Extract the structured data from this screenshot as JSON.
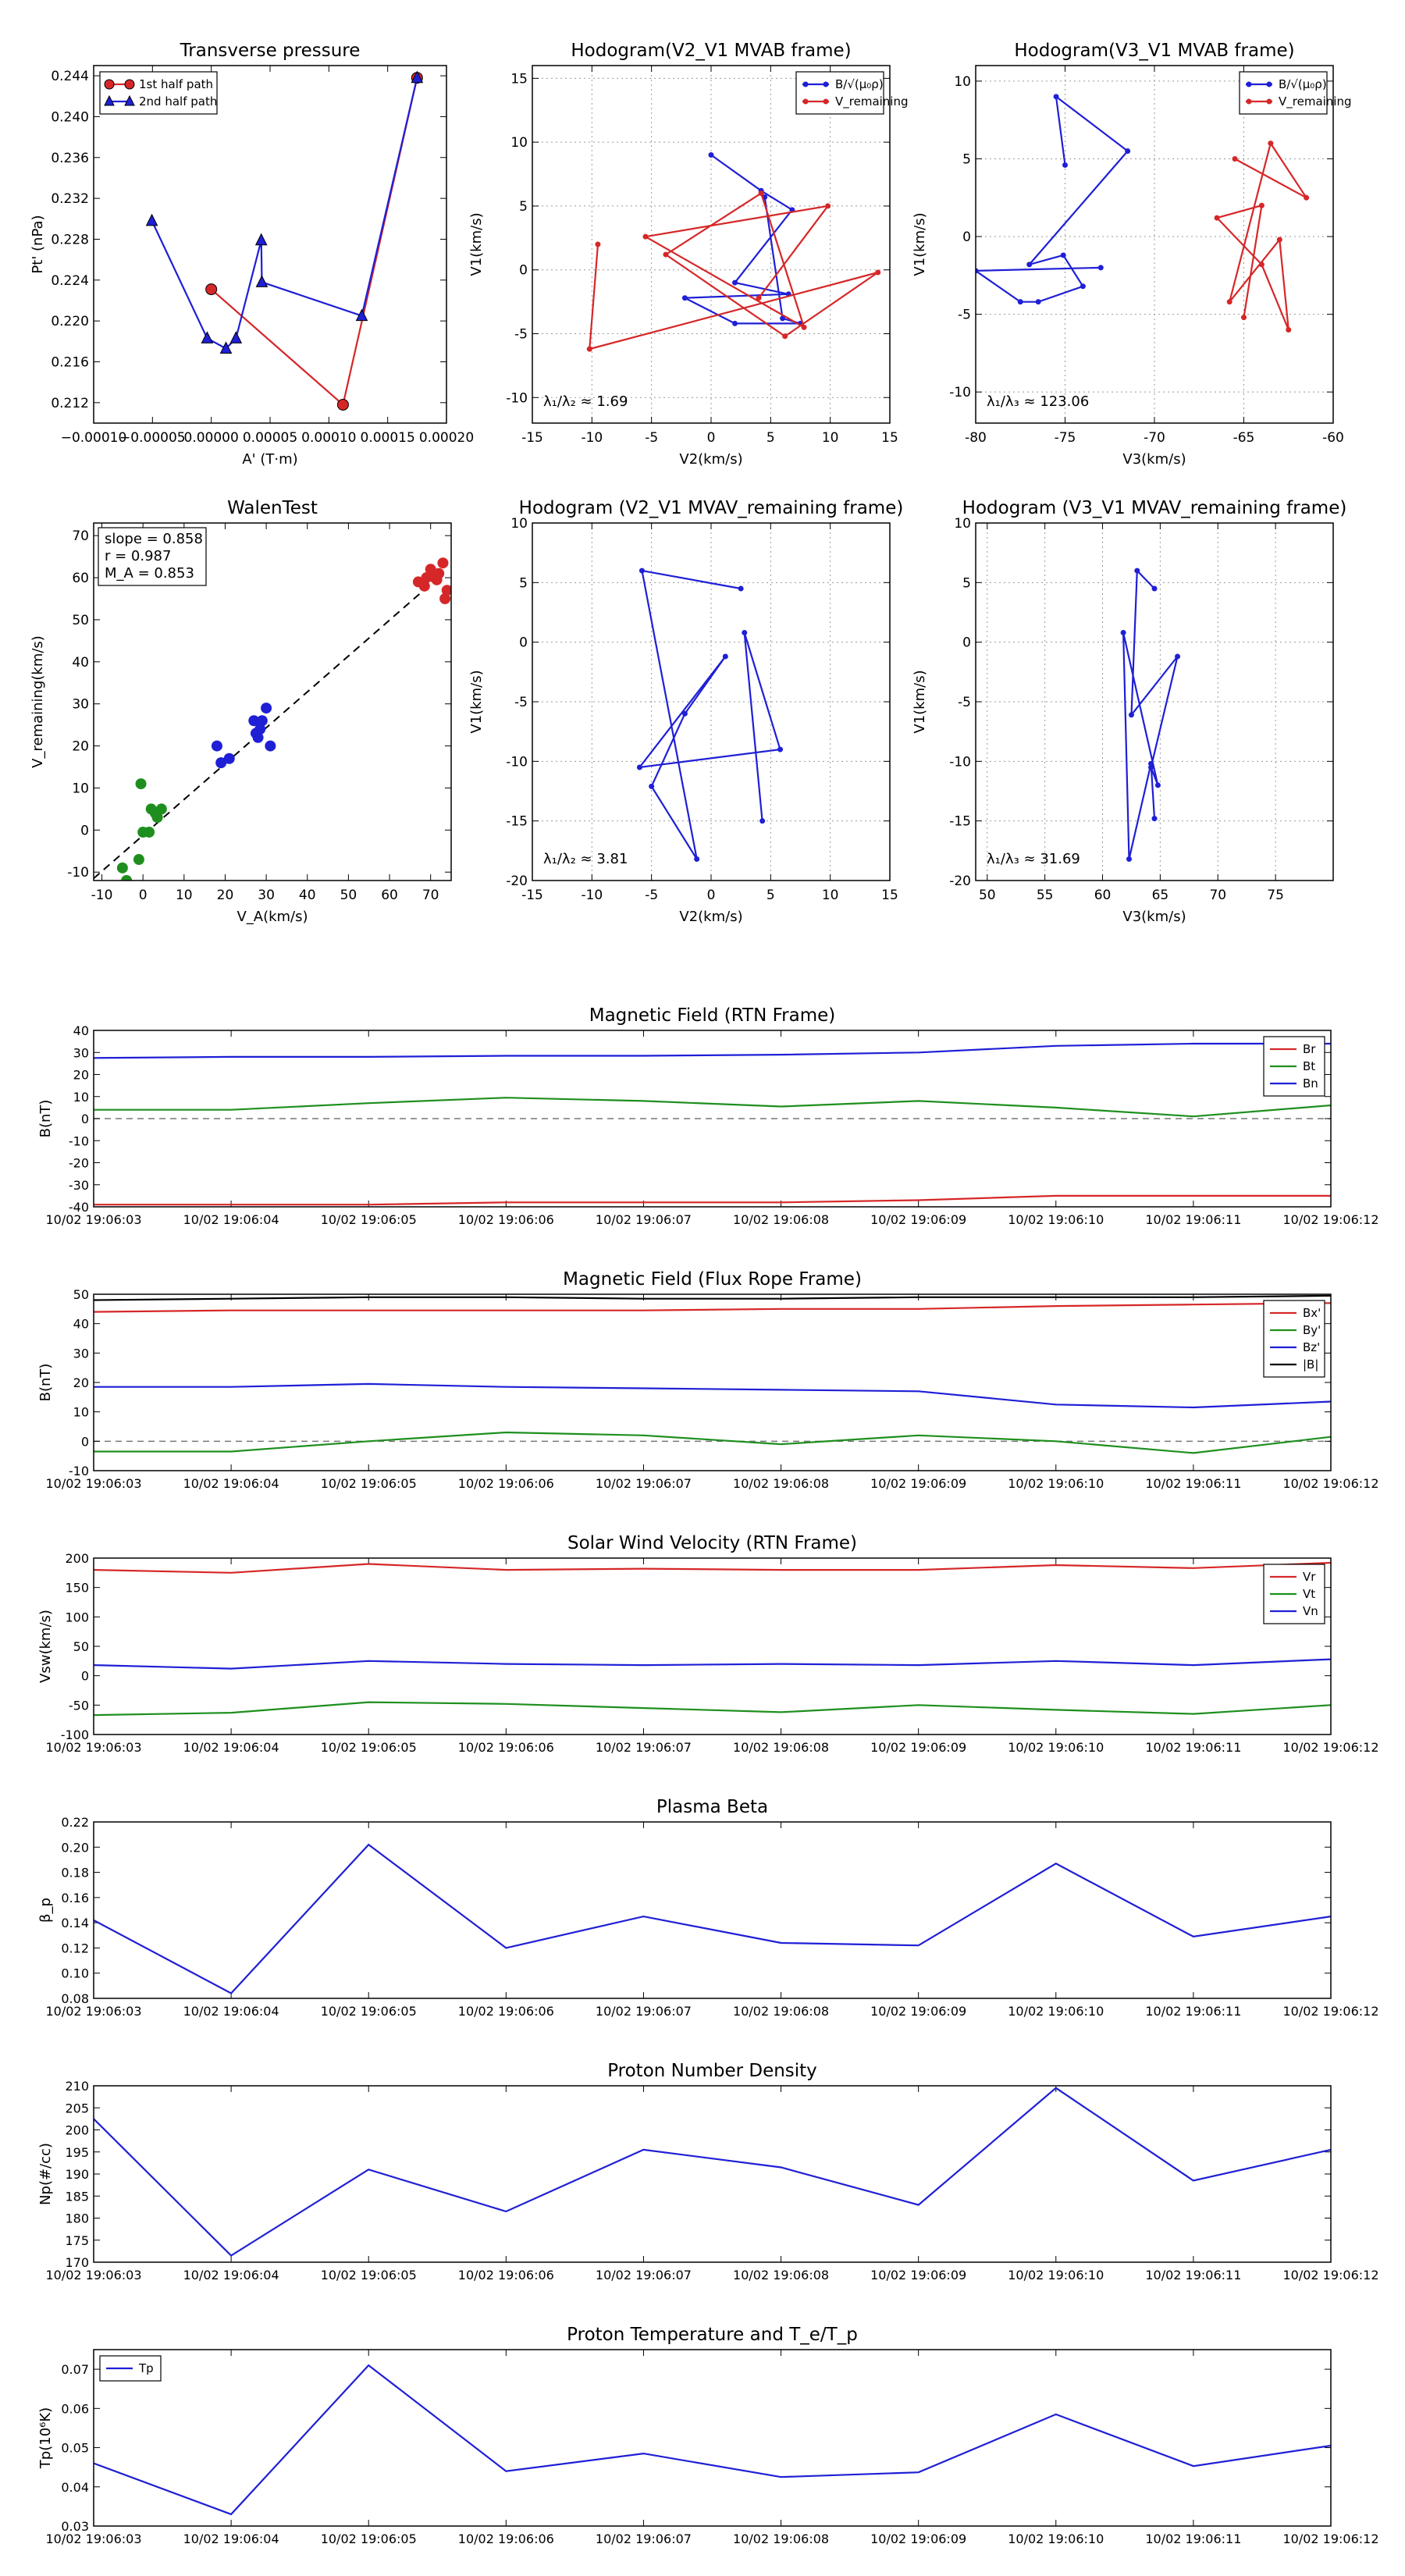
{
  "colors": {
    "red": "#d62728",
    "blue": "#1f1fd6",
    "green": "#1e8f1e",
    "black": "#000000",
    "grid": "#999999"
  },
  "chart_data": [
    {
      "id": "tp",
      "type": "line",
      "title": "Transverse pressure",
      "xlabel": "A' (T·m)",
      "ylabel": "Pt' (nPa)",
      "xlim": [
        -0.0001,
        0.0002
      ],
      "ylim": [
        0.21,
        0.245
      ],
      "xticks": [
        -0.0001,
        -5e-05,
        0,
        5e-05,
        0.0001,
        0.00015,
        0.0002
      ],
      "xtick_labels": [
        "−0.00010",
        "−0.00005",
        "0.00000",
        "0.00005",
        "0.00010",
        "0.00015",
        "0.00020"
      ],
      "yticks": [
        0.212,
        0.216,
        0.22,
        0.224,
        0.228,
        0.232,
        0.236,
        0.24,
        0.244
      ],
      "ytick_labels": [
        "0.212",
        "0.216",
        "0.220",
        "0.224",
        "0.228",
        "0.232",
        "0.236",
        "0.240",
        "0.244"
      ],
      "grid": false,
      "legend": "top-left",
      "series": [
        {
          "name": "1st half path",
          "color": "#d62728",
          "marker": "circle",
          "x": [
            0.0,
            0.000112,
            0.000175
          ],
          "y": [
            0.2231,
            0.2118,
            0.2438
          ]
        },
        {
          "name": "2nd half path",
          "color": "#1f1fd6",
          "marker": "triangle",
          "x": [
            0.000175,
            0.000128,
            4.3e-05,
            4.25e-05,
            2.1e-05,
            1.25e-05,
            -3.5e-06,
            -5.05e-05
          ],
          "y": [
            0.2438,
            0.2205,
            0.2238,
            0.2279,
            0.2183,
            0.2173,
            0.2183,
            0.2298
          ]
        }
      ]
    },
    {
      "id": "hodo1",
      "type": "line",
      "title": "Hodogram(V2_V1 MVAB frame)",
      "xlabel": "V2(km/s)",
      "ylabel": "V1(km/s)",
      "xlim": [
        -15,
        15
      ],
      "ylim": [
        -12,
        16
      ],
      "xticks": [
        -15,
        -10,
        -5,
        0,
        5,
        10,
        15
      ],
      "yticks": [
        -10,
        -5,
        0,
        5,
        10,
        15
      ],
      "grid": true,
      "legend": "top-right",
      "annotation": "λ₁/λ₂ ≈ 1.69",
      "series": [
        {
          "name": "B/√(μ₀ρ)",
          "color": "#1f1fd6",
          "marker": "dot",
          "x": [
            0,
            4.2,
            6.8,
            2,
            6.5,
            -2.2,
            2,
            7.5,
            6,
            4.5
          ],
          "y": [
            9,
            6.2,
            4.7,
            -1,
            -1.9,
            -2.2,
            -4.2,
            -4.2,
            -3.8,
            5.7
          ]
        },
        {
          "name": "V_remaining",
          "color": "#d62728",
          "marker": "dot",
          "x": [
            -9.5,
            -10.2,
            14,
            6.2,
            -3.8,
            4.2,
            7.8,
            -5.5,
            9.8,
            4
          ],
          "y": [
            2,
            -6.2,
            -0.2,
            -5.2,
            1.2,
            6,
            -4.5,
            2.6,
            5,
            -2.2
          ]
        }
      ]
    },
    {
      "id": "hodo2",
      "type": "line",
      "title": "Hodogram(V3_V1 MVAB frame)",
      "xlabel": "V3(km/s)",
      "ylabel": "V1(km/s)",
      "xlim": [
        -80,
        -60
      ],
      "ylim": [
        -12,
        11
      ],
      "xticks": [
        -80,
        -75,
        -70,
        -65,
        -60
      ],
      "yticks": [
        -10,
        -5,
        0,
        5,
        10
      ],
      "grid": true,
      "legend": "top-right",
      "annotation": "λ₁/λ₃ ≈ 123.06",
      "series": [
        {
          "name": "B/√(μ₀ρ)",
          "color": "#1f1fd6",
          "marker": "dot",
          "x": [
            -75,
            -75.5,
            -71.5,
            -77,
            -75.1,
            -74,
            -76.5,
            -77.5,
            -80,
            -73
          ],
          "y": [
            4.6,
            9,
            5.5,
            -1.8,
            -1.2,
            -3.2,
            -4.2,
            -4.2,
            -2.2,
            -2
          ]
        },
        {
          "name": "V_remaining",
          "color": "#d62728",
          "marker": "dot",
          "x": [
            -65.5,
            -61.5,
            -63.5,
            -65.8,
            -63,
            -62.5,
            -64,
            -66.5,
            -64,
            -65
          ],
          "y": [
            5,
            2.5,
            6,
            -4.2,
            -0.2,
            -6,
            -1.8,
            1.2,
            2,
            -5.2
          ]
        }
      ]
    },
    {
      "id": "walen",
      "type": "scatter",
      "title": "WalenTest",
      "xlabel": "V_A(km/s)",
      "ylabel": "V_remaining(km/s)",
      "xlim": [
        -12,
        75
      ],
      "ylim": [
        -12,
        73
      ],
      "xticks": [
        -10,
        0,
        10,
        20,
        30,
        40,
        50,
        60,
        70
      ],
      "yticks": [
        -10,
        0,
        10,
        20,
        30,
        40,
        50,
        60,
        70
      ],
      "grid": false,
      "legend": "top-left",
      "annotations": [
        "slope = 0.858",
        "r = 0.987",
        "M_A = 0.853"
      ],
      "fit_line": {
        "x": [
          -12,
          73
        ],
        "y": [
          -11.5,
          61
        ]
      },
      "series": [
        {
          "name": "red",
          "color": "#d62728",
          "x": [
            67,
            68.5,
            70,
            71,
            72,
            73,
            74,
            69,
            71.5,
            73.5
          ],
          "y": [
            59,
            58,
            62,
            60,
            61,
            63.5,
            57,
            60,
            59.5,
            55
          ]
        },
        {
          "name": "blue",
          "color": "#1f1fd6",
          "x": [
            18,
            19,
            21,
            27,
            28,
            29,
            30,
            31,
            28.5,
            27.5
          ],
          "y": [
            20,
            16,
            17,
            26,
            22,
            26,
            29,
            20,
            24,
            23
          ]
        },
        {
          "name": "green",
          "color": "#1e8f1e",
          "x": [
            -5,
            -4,
            -1,
            0,
            2,
            3,
            3.5,
            4.5,
            -0.5,
            1.5
          ],
          "y": [
            -9,
            -12,
            -7,
            -0.5,
            5,
            4,
            3,
            5,
            11,
            -0.5
          ]
        }
      ]
    },
    {
      "id": "hodo3",
      "type": "line",
      "title": "Hodogram (V2_V1 MVAV_remaining frame)",
      "xlabel": "V2(km/s)",
      "ylabel": "V1(km/s)",
      "xlim": [
        -15,
        15
      ],
      "ylim": [
        -20,
        10
      ],
      "xticks": [
        -15,
        -10,
        -5,
        0,
        5,
        10,
        15
      ],
      "yticks": [
        -20,
        -15,
        -10,
        -5,
        0,
        5,
        10
      ],
      "grid": true,
      "annotation": "λ₁/λ₂ ≈ 3.81",
      "series": [
        {
          "name": "V",
          "color": "#1f1fd6",
          "marker": "dot",
          "x": [
            2.5,
            -5.8,
            -1.2,
            -5,
            -2.2,
            1.2,
            -6,
            5.8,
            2.8,
            4.3
          ],
          "y": [
            4.5,
            6,
            -18.2,
            -12.1,
            -6,
            -1.2,
            -10.5,
            -9,
            0.8,
            -15
          ]
        }
      ]
    },
    {
      "id": "hodo4",
      "type": "line",
      "title": "Hodogram (V3_V1 MVAV_remaining frame)",
      "xlabel": "V3(km/s)",
      "ylabel": "V1(km/s)",
      "xlim": [
        49,
        80
      ],
      "ylim": [
        -20,
        10
      ],
      "xticks": [
        50,
        55,
        60,
        65,
        70,
        75
      ],
      "yticks": [
        -20,
        -15,
        -10,
        -5,
        0,
        5,
        10
      ],
      "grid": true,
      "annotation": "λ₁/λ₃ ≈ 31.69",
      "series": [
        {
          "name": "V",
          "color": "#1f1fd6",
          "marker": "dot",
          "x": [
            64.5,
            63,
            62.5,
            66.5,
            64.2,
            64.8,
            61.8,
            62.3,
            64.2,
            64.5
          ],
          "y": [
            4.5,
            6,
            -6.1,
            -1.2,
            -10.5,
            -12,
            0.8,
            -18.2,
            -10.2,
            -14.8
          ]
        }
      ]
    },
    {
      "id": "bfield_rtn",
      "type": "line",
      "title": "Magnetic Field (RTN Frame)",
      "ylabel": "B(nT)",
      "ylim": [
        -40,
        40
      ],
      "yticks": [
        -40,
        -30,
        -20,
        -10,
        0,
        10,
        20,
        30,
        40
      ],
      "xlim": [
        0,
        9
      ],
      "categories": [
        "10/02 19:06:03",
        "10/02 19:06:04",
        "10/02 19:06:05",
        "10/02 19:06:06",
        "10/02 19:06:07",
        "10/02 19:06:08",
        "10/02 19:06:09",
        "10/02 19:06:10",
        "10/02 19:06:11",
        "10/02 19:06:12"
      ],
      "zero_line": true,
      "grid": false,
      "legend": "top-right",
      "series": [
        {
          "name": "Br",
          "color": "#d62728",
          "values": [
            -39,
            -39,
            -39,
            -38,
            -38,
            -38,
            -37,
            -35,
            -35,
            -35
          ]
        },
        {
          "name": "Bt",
          "color": "#1e8f1e",
          "values": [
            4,
            4,
            7,
            9.5,
            8,
            5.5,
            8,
            5,
            1,
            6
          ]
        },
        {
          "name": "Bn",
          "color": "#1f1fd6",
          "values": [
            27.5,
            28,
            28,
            28.5,
            28.5,
            29,
            30,
            33,
            34,
            34
          ]
        }
      ]
    },
    {
      "id": "bfield_fr",
      "type": "line",
      "title": "Magnetic Field (Flux Rope Frame)",
      "ylabel": "B(nT)",
      "ylim": [
        -10,
        50
      ],
      "yticks": [
        -10,
        0,
        10,
        20,
        30,
        40,
        50
      ],
      "xlim": [
        0,
        9
      ],
      "categories": [
        "10/02 19:06:03",
        "10/02 19:06:04",
        "10/02 19:06:05",
        "10/02 19:06:06",
        "10/02 19:06:07",
        "10/02 19:06:08",
        "10/02 19:06:09",
        "10/02 19:06:10",
        "10/02 19:06:11",
        "10/02 19:06:12"
      ],
      "zero_line": true,
      "grid": false,
      "legend": "top-right",
      "series": [
        {
          "name": "Bx'",
          "color": "#d62728",
          "values": [
            44,
            44.5,
            44.5,
            44.5,
            44.5,
            45,
            45,
            46,
            46.5,
            47
          ]
        },
        {
          "name": "By'",
          "color": "#1e8f1e",
          "values": [
            -3.5,
            -3.5,
            0,
            3,
            2,
            -1,
            2,
            0,
            -4,
            1.5
          ]
        },
        {
          "name": "Bz'",
          "color": "#1f1fd6",
          "values": [
            18.5,
            18.5,
            19.5,
            18.5,
            18,
            17.5,
            17,
            12.5,
            11.5,
            13.5
          ]
        },
        {
          "name": "|B|",
          "color": "#000000",
          "values": [
            48,
            48.5,
            49,
            49,
            48.5,
            48.5,
            49,
            49,
            49,
            49.5
          ]
        }
      ]
    },
    {
      "id": "vsw",
      "type": "line",
      "title": "Solar Wind Velocity (RTN Frame)",
      "ylabel": "Vsw(km/s)",
      "ylim": [
        -100,
        200
      ],
      "yticks": [
        -100,
        -50,
        0,
        50,
        100,
        150,
        200
      ],
      "xlim": [
        0,
        9
      ],
      "categories": [
        "10/02 19:06:03",
        "10/02 19:06:04",
        "10/02 19:06:05",
        "10/02 19:06:06",
        "10/02 19:06:07",
        "10/02 19:06:08",
        "10/02 19:06:09",
        "10/02 19:06:10",
        "10/02 19:06:11",
        "10/02 19:06:12"
      ],
      "grid": false,
      "legend": "top-right",
      "series": [
        {
          "name": "Vr",
          "color": "#d62728",
          "values": [
            180,
            175,
            190,
            180,
            182,
            180,
            180,
            188,
            183,
            192
          ]
        },
        {
          "name": "Vt",
          "color": "#1e8f1e",
          "values": [
            -67,
            -63,
            -45,
            -48,
            -55,
            -62,
            -50,
            -58,
            -65,
            -50
          ]
        },
        {
          "name": "Vn",
          "color": "#1f1fd6",
          "values": [
            18,
            12,
            25,
            20,
            18,
            20,
            18,
            25,
            18,
            28
          ]
        }
      ]
    },
    {
      "id": "beta",
      "type": "line",
      "title": "Plasma Beta",
      "ylabel": "β_p",
      "ylim": [
        0.08,
        0.22
      ],
      "yticks": [
        0.08,
        0.1,
        0.12,
        0.14,
        0.16,
        0.18,
        0.2,
        0.22
      ],
      "ytick_labels": [
        "0.08",
        "0.10",
        "0.12",
        "0.14",
        "0.16",
        "0.18",
        "0.20",
        "0.22"
      ],
      "xlim": [
        0,
        9
      ],
      "categories": [
        "10/02 19:06:03",
        "10/02 19:06:04",
        "10/02 19:06:05",
        "10/02 19:06:06",
        "10/02 19:06:07",
        "10/02 19:06:08",
        "10/02 19:06:09",
        "10/02 19:06:10",
        "10/02 19:06:11",
        "10/02 19:06:12"
      ],
      "grid": false,
      "series": [
        {
          "name": "beta",
          "color": "#1f1fd6",
          "values": [
            0.142,
            0.084,
            0.202,
            0.12,
            0.145,
            0.124,
            0.122,
            0.187,
            0.129,
            0.145
          ]
        }
      ]
    },
    {
      "id": "np",
      "type": "line",
      "title": "Proton Number Density",
      "ylabel": "Np(#/cc)",
      "ylim": [
        170,
        210
      ],
      "yticks": [
        170,
        175,
        180,
        185,
        190,
        195,
        200,
        205,
        210
      ],
      "xlim": [
        0,
        9
      ],
      "categories": [
        "10/02 19:06:03",
        "10/02 19:06:04",
        "10/02 19:06:05",
        "10/02 19:06:06",
        "10/02 19:06:07",
        "10/02 19:06:08",
        "10/02 19:06:09",
        "10/02 19:06:10",
        "10/02 19:06:11",
        "10/02 19:06:12"
      ],
      "grid": false,
      "series": [
        {
          "name": "Np",
          "color": "#1f1fd6",
          "values": [
            202.5,
            171.5,
            191,
            181.5,
            195.5,
            191.5,
            183,
            209.5,
            188.5,
            195.5
          ]
        }
      ]
    },
    {
      "id": "tp_temp",
      "type": "line",
      "title": "Proton Temperature and T_e/T_p",
      "ylabel": "Tp(10⁶K)",
      "ylim": [
        0.03,
        0.075
      ],
      "yticks": [
        0.03,
        0.04,
        0.05,
        0.06,
        0.07
      ],
      "ytick_labels": [
        "0.03",
        "0.04",
        "0.05",
        "0.06",
        "0.07"
      ],
      "xlim": [
        0,
        9
      ],
      "categories": [
        "10/02 19:06:03",
        "10/02 19:06:04",
        "10/02 19:06:05",
        "10/02 19:06:06",
        "10/02 19:06:07",
        "10/02 19:06:08",
        "10/02 19:06:09",
        "10/02 19:06:10",
        "10/02 19:06:11",
        "10/02 19:06:12"
      ],
      "grid": false,
      "legend": "top-left",
      "series": [
        {
          "name": "Tp",
          "color": "#1f1fd6",
          "values": [
            0.046,
            0.033,
            0.071,
            0.044,
            0.0485,
            0.0425,
            0.0437,
            0.0585,
            0.0453,
            0.0505
          ]
        }
      ]
    }
  ]
}
